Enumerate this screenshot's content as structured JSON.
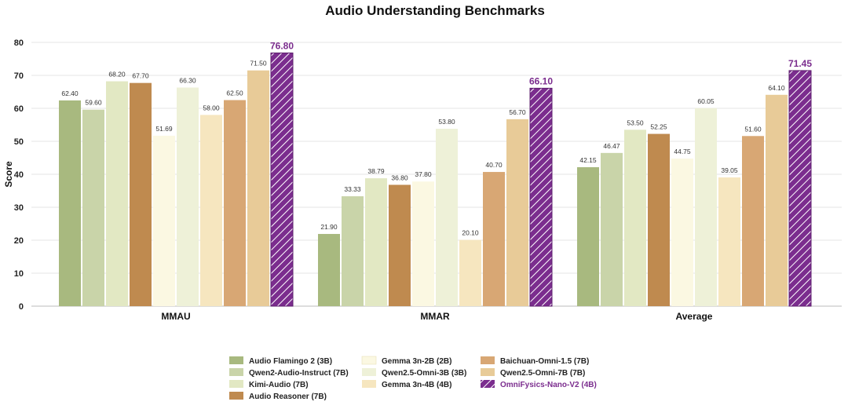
{
  "chart_data": {
    "type": "bar",
    "title": "Audio Understanding Benchmarks",
    "xlabel": "",
    "ylabel": "Score",
    "ylim": [
      0,
      80
    ],
    "yticks": [
      0,
      10,
      20,
      30,
      40,
      50,
      60,
      70,
      80
    ],
    "grid": true,
    "legend_position": "bottom",
    "categories": [
      "MMAU",
      "MMAR",
      "Average"
    ],
    "series": [
      {
        "name": "Audio Flamingo 2 (3B)",
        "values": [
          62.4,
          21.9,
          42.15
        ],
        "labels": [
          "62.40",
          "21.90",
          "42.15"
        ],
        "color": "#a8b97f"
      },
      {
        "name": "Qwen2-Audio-Instruct (7B)",
        "values": [
          59.6,
          33.33,
          46.47
        ],
        "labels": [
          "59.60",
          "33.33",
          "46.47"
        ],
        "color": "#c9d4a9"
      },
      {
        "name": "Kimi-Audio (7B)",
        "values": [
          68.2,
          38.79,
          53.5
        ],
        "labels": [
          "68.20",
          "38.79",
          "53.50"
        ],
        "color": "#e2e8c3"
      },
      {
        "name": "Audio Reasoner (7B)",
        "values": [
          67.7,
          36.8,
          52.25
        ],
        "labels": [
          "67.70",
          "36.80",
          "52.25"
        ],
        "color": "#bf8a4f"
      },
      {
        "name": "Gemma 3n-2B (2B)",
        "values": [
          51.69,
          37.8,
          44.75
        ],
        "labels": [
          "51.69",
          "37.80",
          "44.75"
        ],
        "color": "#fbf8e2"
      },
      {
        "name": "Qwen2.5-Omni-3B (3B)",
        "values": [
          66.3,
          53.8,
          60.05
        ],
        "labels": [
          "66.30",
          "53.80",
          "60.05"
        ],
        "color": "#eef1d8"
      },
      {
        "name": "Gemma 3n-4B (4B)",
        "values": [
          58.0,
          20.1,
          39.05
        ],
        "labels": [
          "58.00",
          "20.10",
          "39.05"
        ],
        "color": "#f6e6bf"
      },
      {
        "name": "Baichuan-Omni-1.5 (7B)",
        "values": [
          62.5,
          40.7,
          51.6
        ],
        "labels": [
          "62.50",
          "40.70",
          "51.60"
        ],
        "color": "#d8a774"
      },
      {
        "name": "Qwen2.5-Omni-7B (7B)",
        "values": [
          71.5,
          56.7,
          64.1
        ],
        "labels": [
          "71.50",
          "56.70",
          "64.10"
        ],
        "color": "#e8cb98"
      },
      {
        "name": "OmniFysics-Nano-V2 (4B)",
        "values": [
          76.8,
          66.1,
          71.45
        ],
        "labels": [
          "76.80",
          "66.10",
          "71.45"
        ],
        "color": "#7b2d8e",
        "highlight": true,
        "hatched": true
      }
    ]
  }
}
